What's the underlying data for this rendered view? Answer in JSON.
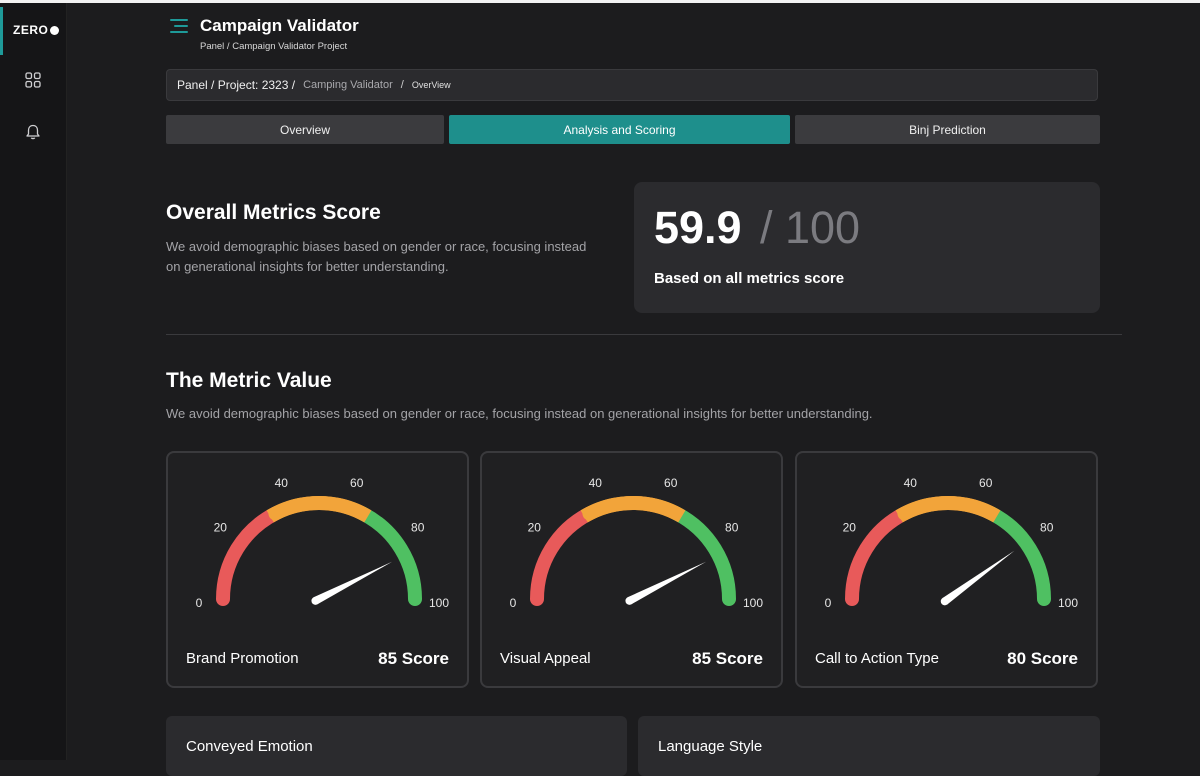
{
  "sidebar": {
    "logo": "ZERO",
    "icons": [
      "grid-icon",
      "bell-icon"
    ]
  },
  "header": {
    "title": "Campaign Validator",
    "breadcrumb": "Panel  /  Campaign Validator Project"
  },
  "crumb_bar": {
    "project": "Panel / Project: 2323 /",
    "name": "Camping Validator",
    "sep": "/",
    "page": "OverView"
  },
  "tabs": [
    {
      "label": "Overview",
      "active": false
    },
    {
      "label": "Analysis and Scoring",
      "active": true
    },
    {
      "label": "Binj Prediction",
      "active": false
    }
  ],
  "overall": {
    "title": "Overall Metrics Score",
    "description": "We avoid demographic biases based on gender or race, focusing instead on generational insights for better understanding.",
    "score": "59.9",
    "max": "/ 100",
    "subtitle": "Based on all metrics score"
  },
  "metric_value": {
    "title": "The Metric Value",
    "description": "We avoid demographic biases based on gender or race, focusing instead on generational insights for better understanding."
  },
  "gauge_ticks": [
    "0",
    "20",
    "40",
    "60",
    "80",
    "100"
  ],
  "gauges": [
    {
      "label": "Brand Promotion",
      "score_text": "85 Score",
      "value": 85
    },
    {
      "label": "Visual Appeal",
      "score_text": "85 Score",
      "value": 85
    },
    {
      "label": "Call to Action Type",
      "score_text": "80 Score",
      "value": 80
    }
  ],
  "bottom_cards": [
    {
      "title": "Conveyed Emotion"
    },
    {
      "title": "Language Style"
    }
  ],
  "colors": {
    "accent": "#1e9a99",
    "gauge_red": "#e85a5a",
    "gauge_orange": "#f2a43a",
    "gauge_green": "#4fc062"
  }
}
